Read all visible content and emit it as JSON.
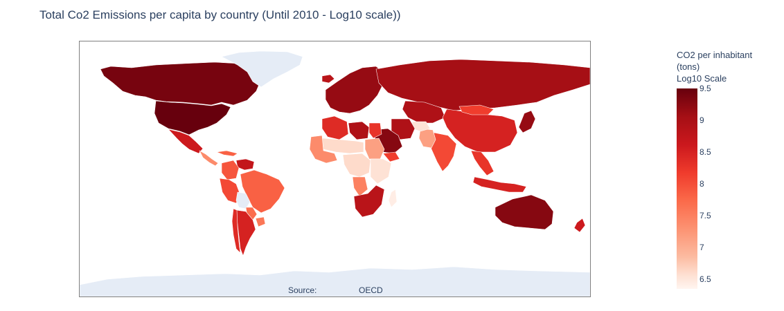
{
  "chart": {
    "title": "Total Co2 Emissions per capita by country (Until 2010 - Log10 scale))",
    "source_label": "Source:",
    "source_value": "OECD"
  },
  "colors": {
    "no_data": "#e5ecf6",
    "scale": [
      "#fff5f0",
      "#fee0d2",
      "#fcbba1",
      "#fc9272",
      "#fb6a4a",
      "#ef3b2c",
      "#cb181d",
      "#a50f15",
      "#67000d"
    ]
  },
  "chart_data": {
    "type": "choropleth",
    "title": "Total Co2 Emissions per capita by country (Until 2010 - Log10 scale))",
    "colorscale": "Reds",
    "colorbar": {
      "title_lines": [
        "CO2 per inhabitant",
        "(tons)",
        "Log10 Scale"
      ],
      "range": [
        6.35,
        9.5
      ],
      "ticks": [
        "9.5",
        "9",
        "8.5",
        "8",
        "7.5",
        "7",
        "6.5"
      ]
    },
    "regions": [
      {
        "name": "Canada",
        "value": 9.4
      },
      {
        "name": "United States",
        "value": 9.5
      },
      {
        "name": "Greenland",
        "value": null
      },
      {
        "name": "Mexico",
        "value": 8.7
      },
      {
        "name": "Central America",
        "value": 7.6
      },
      {
        "name": "Caribbean",
        "value": 8.0
      },
      {
        "name": "Venezuela",
        "value": 8.8
      },
      {
        "name": "Colombia",
        "value": 8.1
      },
      {
        "name": "Brazil",
        "value": 8.0
      },
      {
        "name": "Peru",
        "value": 8.2
      },
      {
        "name": "Bolivia",
        "value": null
      },
      {
        "name": "Paraguay",
        "value": 7.9
      },
      {
        "name": "Argentina",
        "value": 8.6
      },
      {
        "name": "Chile",
        "value": 8.5
      },
      {
        "name": "Uruguay",
        "value": 7.8
      },
      {
        "name": "Iceland",
        "value": 8.9
      },
      {
        "name": "Europe",
        "value": 9.2
      },
      {
        "name": "Russia",
        "value": 9.1
      },
      {
        "name": "Kazakhstan",
        "value": 9.0
      },
      {
        "name": "China",
        "value": 8.6
      },
      {
        "name": "Mongolia",
        "value": 8.3
      },
      {
        "name": "India",
        "value": 8.2
      },
      {
        "name": "Pakistan",
        "value": 7.4
      },
      {
        "name": "Afghanistan",
        "value": 6.7
      },
      {
        "name": "Iran",
        "value": 9.0
      },
      {
        "name": "Saudi Arabia",
        "value": 9.3
      },
      {
        "name": "Yemen",
        "value": 8.3
      },
      {
        "name": "Japan",
        "value": 9.2
      },
      {
        "name": "Southeast Asia",
        "value": 8.4
      },
      {
        "name": "Indonesia",
        "value": 8.6
      },
      {
        "name": "Australia",
        "value": 9.3
      },
      {
        "name": "New Zealand",
        "value": 8.7
      },
      {
        "name": "Libya",
        "value": 9.0
      },
      {
        "name": "Algeria",
        "value": 8.5
      },
      {
        "name": "Egypt",
        "value": 8.4
      },
      {
        "name": "Sudan",
        "value": 7.4
      },
      {
        "name": "Sahel",
        "value": 6.8
      },
      {
        "name": "West Africa",
        "value": 7.6
      },
      {
        "name": "Central Africa",
        "value": 6.8
      },
      {
        "name": "Angola",
        "value": 7.7
      },
      {
        "name": "East Africa",
        "value": 6.7
      },
      {
        "name": "Southern Africa",
        "value": 8.9
      },
      {
        "name": "Madagascar",
        "value": 6.5
      },
      {
        "name": "Antarctica",
        "value": null
      }
    ]
  }
}
